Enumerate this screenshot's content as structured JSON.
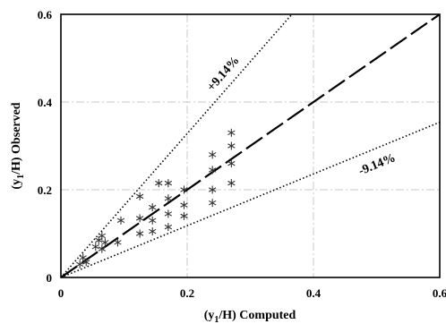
{
  "chart_data": {
    "type": "scatter",
    "title": "",
    "xlabel": "(y1/H) Computed",
    "ylabel": "(y1/H) Observed",
    "xlabel_parts": {
      "before": "(y",
      "sub": "1",
      "after": "/H) Computed"
    },
    "ylabel_parts": {
      "before": "(y",
      "sub": "1",
      "after": "/H) Observed"
    },
    "xlim": [
      0,
      0.6
    ],
    "ylim": [
      0,
      0.6
    ],
    "x_ticks": [
      0,
      0.2,
      0.4,
      0.6
    ],
    "y_ticks": [
      0,
      0.2,
      0.4,
      0.6
    ],
    "x_tick_labels": [
      "0",
      "0.2",
      "0.4",
      "0.6"
    ],
    "y_tick_labels": [
      "0",
      "0.2",
      "0.4",
      "0.6"
    ],
    "grid": true,
    "legend": "none",
    "marker": "asterisk",
    "reference_lines": [
      {
        "label": "",
        "slope": 1.0,
        "style": "dashed"
      },
      {
        "label": "+9.14%",
        "slope": 1.64,
        "style": "dotted"
      },
      {
        "label": "-9.14%",
        "slope": 0.59,
        "style": "dotted"
      }
    ],
    "points": [
      {
        "x": 0.03,
        "y": 0.03
      },
      {
        "x": 0.035,
        "y": 0.045
      },
      {
        "x": 0.04,
        "y": 0.035
      },
      {
        "x": 0.055,
        "y": 0.07
      },
      {
        "x": 0.06,
        "y": 0.085
      },
      {
        "x": 0.065,
        "y": 0.065
      },
      {
        "x": 0.065,
        "y": 0.095
      },
      {
        "x": 0.07,
        "y": 0.08
      },
      {
        "x": 0.09,
        "y": 0.08
      },
      {
        "x": 0.095,
        "y": 0.13
      },
      {
        "x": 0.125,
        "y": 0.1
      },
      {
        "x": 0.125,
        "y": 0.135
      },
      {
        "x": 0.125,
        "y": 0.185
      },
      {
        "x": 0.145,
        "y": 0.105
      },
      {
        "x": 0.145,
        "y": 0.13
      },
      {
        "x": 0.145,
        "y": 0.16
      },
      {
        "x": 0.155,
        "y": 0.215
      },
      {
        "x": 0.17,
        "y": 0.115
      },
      {
        "x": 0.17,
        "y": 0.145
      },
      {
        "x": 0.17,
        "y": 0.18
      },
      {
        "x": 0.17,
        "y": 0.215
      },
      {
        "x": 0.195,
        "y": 0.14
      },
      {
        "x": 0.195,
        "y": 0.165
      },
      {
        "x": 0.195,
        "y": 0.2
      },
      {
        "x": 0.24,
        "y": 0.17
      },
      {
        "x": 0.24,
        "y": 0.2
      },
      {
        "x": 0.24,
        "y": 0.245
      },
      {
        "x": 0.24,
        "y": 0.28
      },
      {
        "x": 0.27,
        "y": 0.215
      },
      {
        "x": 0.27,
        "y": 0.26
      },
      {
        "x": 0.27,
        "y": 0.3
      },
      {
        "x": 0.27,
        "y": 0.33
      }
    ]
  }
}
